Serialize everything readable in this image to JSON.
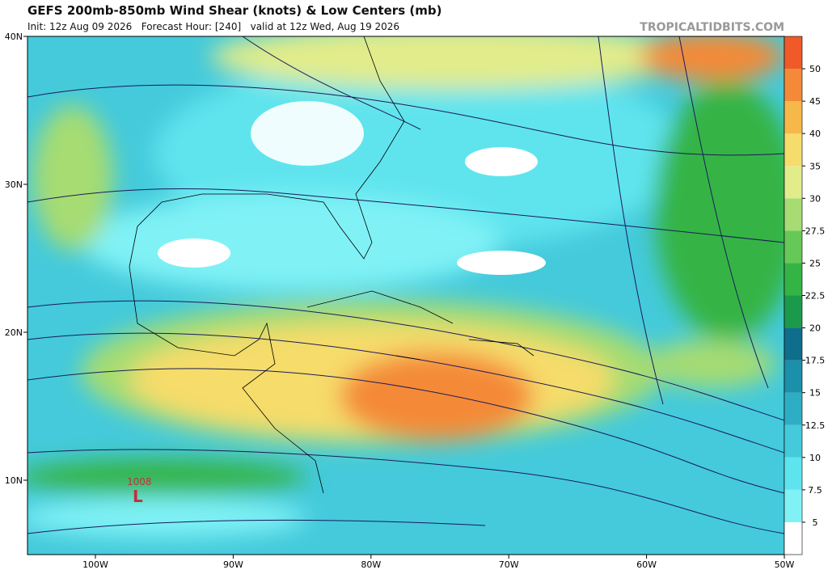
{
  "header": {
    "title": "GEFS 200mb-850mb Wind Shear (knots) & Low Centers (mb)",
    "subtitle": "Init: 12z Aug 09 2026   Forecast Hour: [240]   valid at 12z Wed, Aug 19 2026",
    "site": "TROPICALTIDBITS.COM"
  },
  "axes": {
    "lat_labels": [
      "40N",
      "30N",
      "20N",
      "10N"
    ],
    "lon_labels": [
      "100W",
      "90W",
      "80W",
      "70W",
      "60W",
      "50W"
    ]
  },
  "colorbar": {
    "levels": [
      5,
      7.5,
      10,
      12.5,
      15,
      17.5,
      20,
      22.5,
      25,
      27.5,
      30,
      35,
      40,
      45,
      50
    ],
    "colors": [
      "#ffffff",
      "#80f2f6",
      "#5ee4ee",
      "#44cadb",
      "#2eaec4",
      "#1b90ab",
      "#0f6e8c",
      "#1c9a4c",
      "#34b444",
      "#66c856",
      "#a6dc72",
      "#e2ec8a",
      "#f6dc6a",
      "#f6b848",
      "#f48a38",
      "#f05a28"
    ]
  },
  "low_centers": [
    {
      "pressure": "1008",
      "symbol": "L"
    }
  ]
}
